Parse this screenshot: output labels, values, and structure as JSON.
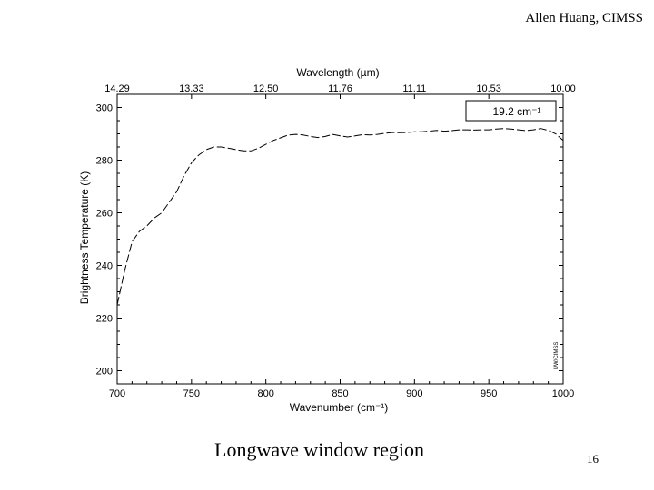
{
  "slide": {
    "author": "Allen Huang, CIMSS",
    "caption": "Longwave window region",
    "page_number": "16"
  },
  "chart_data": {
    "type": "line",
    "top_axis_label": "Wavelength (µm)",
    "top_ticks": [
      {
        "x": 700,
        "label": "14.29"
      },
      {
        "x": 750,
        "label": "13.33"
      },
      {
        "x": 800,
        "label": "12.50"
      },
      {
        "x": 850,
        "label": "11.76"
      },
      {
        "x": 900,
        "label": "11.11"
      },
      {
        "x": 950,
        "label": "10.53"
      },
      {
        "x": 1000,
        "label": "10.00"
      }
    ],
    "xlabel": "Wavenumber (cm⁻¹)",
    "ylabel": "Brightness Temperature (K)",
    "xlim": [
      700,
      1000
    ],
    "ylim": [
      195,
      305
    ],
    "x_ticks": [
      700,
      750,
      800,
      850,
      900,
      950,
      1000
    ],
    "y_ticks": [
      200,
      220,
      240,
      260,
      280,
      300
    ],
    "legend": {
      "label": "19.2 cm⁻¹",
      "position": "top-right"
    },
    "watermark": "UW/CIMSS",
    "grid": false,
    "series": [
      {
        "name": "19.2 cm⁻¹",
        "line_style": "dashed",
        "color": "#000000",
        "x": [
          700,
          705,
          710,
          715,
          720,
          725,
          730,
          735,
          740,
          745,
          750,
          755,
          760,
          765,
          770,
          775,
          780,
          785,
          790,
          795,
          800,
          805,
          810,
          815,
          820,
          825,
          830,
          835,
          840,
          845,
          850,
          855,
          860,
          865,
          870,
          875,
          880,
          885,
          890,
          895,
          900,
          905,
          910,
          915,
          920,
          925,
          930,
          935,
          940,
          945,
          950,
          955,
          960,
          965,
          970,
          975,
          980,
          985,
          990,
          995,
          1000
        ],
        "y": [
          225,
          238,
          249,
          253,
          255,
          258,
          260,
          264,
          268,
          274,
          279,
          282,
          284,
          285,
          285,
          284.5,
          284,
          283.5,
          283.5,
          284.5,
          286,
          287.5,
          288.5,
          289.5,
          289.8,
          289.6,
          289,
          288.6,
          289,
          289.8,
          289.2,
          288.8,
          289.2,
          289.7,
          289.6,
          289.8,
          290.2,
          290.5,
          290.4,
          290.5,
          290.8,
          290.8,
          291,
          291.3,
          291,
          291.2,
          291.5,
          291.5,
          291.4,
          291.5,
          291.5,
          291.8,
          292,
          291.8,
          291.5,
          291.2,
          291.5,
          292,
          291.3,
          290,
          287.5
        ]
      }
    ]
  }
}
